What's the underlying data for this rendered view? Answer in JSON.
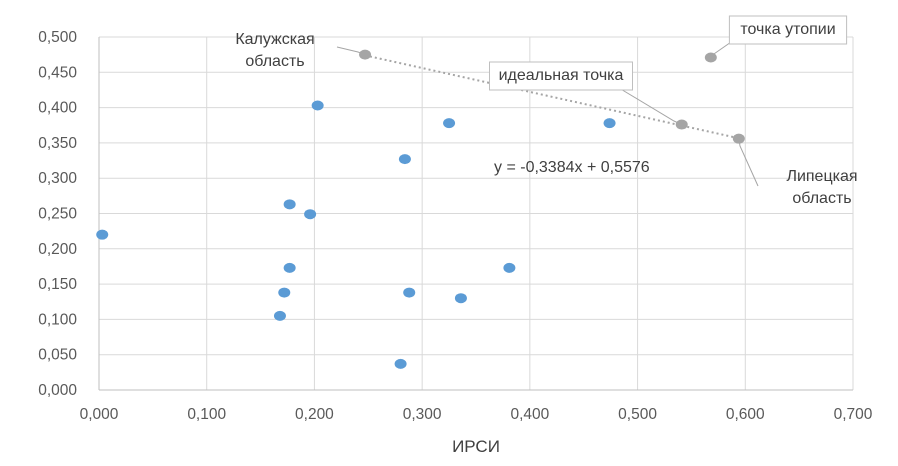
{
  "chart_data": {
    "type": "scatter",
    "title": "",
    "xlabel": "ИРСИ",
    "ylabel": "",
    "xlim": [
      0,
      0.7
    ],
    "ylim": [
      0,
      0.5
    ],
    "x_ticks": [
      "0,000",
      "0,100",
      "0,200",
      "0,300",
      "0,400",
      "0,500",
      "0,600",
      "0,700"
    ],
    "y_ticks": [
      "0,000",
      "0,050",
      "0,100",
      "0,150",
      "0,200",
      "0,250",
      "0,300",
      "0,350",
      "0,400",
      "0,450",
      "0,500"
    ],
    "grid": true,
    "series": [
      {
        "color": "#5B9BD5",
        "points": [
          {
            "x": 0.003,
            "y": 0.22
          },
          {
            "x": 0.203,
            "y": 0.403
          },
          {
            "x": 0.177,
            "y": 0.263
          },
          {
            "x": 0.196,
            "y": 0.249
          },
          {
            "x": 0.177,
            "y": 0.173
          },
          {
            "x": 0.172,
            "y": 0.138
          },
          {
            "x": 0.168,
            "y": 0.105
          },
          {
            "x": 0.325,
            "y": 0.378
          },
          {
            "x": 0.284,
            "y": 0.327
          },
          {
            "x": 0.288,
            "y": 0.138
          },
          {
            "x": 0.336,
            "y": 0.13
          },
          {
            "x": 0.381,
            "y": 0.173
          },
          {
            "x": 0.28,
            "y": 0.037
          },
          {
            "x": 0.474,
            "y": 0.378
          }
        ]
      },
      {
        "color": "#A5A5A5",
        "points": [
          {
            "x": 0.247,
            "y": 0.475
          },
          {
            "x": 0.541,
            "y": 0.376
          },
          {
            "x": 0.594,
            "y": 0.356
          },
          {
            "x": 0.568,
            "y": 0.471
          }
        ]
      }
    ],
    "trendline": {
      "equation": "y = -0,3384x + 0,5576",
      "slope": -0.3384,
      "intercept": 0.5576,
      "x_range": [
        0.247,
        0.594
      ],
      "color": "#A5A5A5"
    },
    "annotations": [
      {
        "lines": [
          "Калужская",
          "область"
        ],
        "x": 0.247,
        "y": 0.475
      },
      {
        "lines": [
          "идеальная точка"
        ],
        "x": 0.541,
        "y": 0.376
      },
      {
        "lines": [
          "точка утопии"
        ],
        "x": 0.568,
        "y": 0.471
      },
      {
        "lines": [
          "Липецкая",
          "область"
        ],
        "x": 0.594,
        "y": 0.356
      }
    ]
  }
}
